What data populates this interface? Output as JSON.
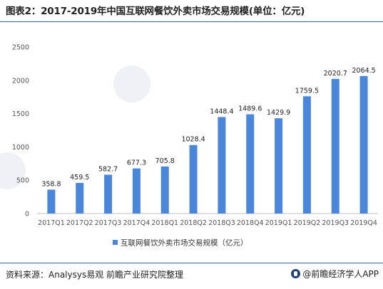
{
  "title": "图表2：2017-2019年中国互联网餐饮外卖市场交易规模(单位：亿元)",
  "source": "资料来源：Analysys易观 前瞻产业研究院整理",
  "brand": "@前瞻经济学人APP",
  "colors": {
    "bar": "#4a86d9",
    "rule": "#3a5e9c"
  },
  "chart_data": {
    "type": "bar",
    "categories": [
      "2017Q1",
      "2017Q2",
      "2017Q3",
      "2017Q4",
      "2018Q1",
      "2018Q2",
      "2018Q3",
      "2018Q4",
      "2019Q1",
      "2019Q2",
      "2019Q3",
      "2019Q4"
    ],
    "series": [
      {
        "name": "互联网餐饮外卖市场交易规模（亿元）",
        "values": [
          358.8,
          459.5,
          582.7,
          677.3,
          705.8,
          1028.4,
          1448.4,
          1489.6,
          1429.9,
          1759.5,
          2020.7,
          2064.5
        ]
      }
    ],
    "yticks": [
      "0",
      "500",
      "1000",
      "1500",
      "2000",
      "2500"
    ],
    "ylim": [
      0,
      2500
    ],
    "grid": false,
    "legend_position": "bottom"
  }
}
